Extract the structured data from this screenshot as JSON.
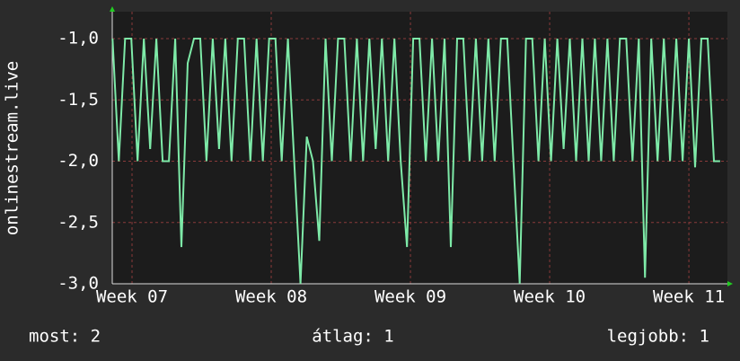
{
  "chart_data": {
    "type": "line",
    "ylabel": "onlinestream.live",
    "x": [
      6.86,
      6.905,
      6.95,
      6.995,
      7.04,
      7.085,
      7.13,
      7.175,
      7.22,
      7.265,
      7.31,
      7.355,
      7.4,
      7.445,
      7.49,
      7.535,
      7.58,
      7.625,
      7.67,
      7.715,
      7.76,
      7.805,
      7.85,
      7.895,
      7.94,
      7.985,
      8.03,
      8.075,
      8.12,
      8.165,
      8.21,
      8.255,
      8.3,
      8.345,
      8.39,
      8.435,
      8.48,
      8.525,
      8.57,
      8.615,
      8.66,
      8.705,
      8.75,
      8.795,
      8.84,
      8.885,
      8.93,
      8.975,
      9.02,
      9.065,
      9.11,
      9.155,
      9.2,
      9.245,
      9.29,
      9.335,
      9.38,
      9.425,
      9.47,
      9.515,
      9.56,
      9.605,
      9.65,
      9.695,
      9.74,
      9.785,
      9.83,
      9.875,
      9.92,
      9.965,
      10.01,
      10.055,
      10.1,
      10.145,
      10.19,
      10.235,
      10.28,
      10.325,
      10.37,
      10.415,
      10.46,
      10.505,
      10.55,
      10.595,
      10.64,
      10.685,
      10.73,
      10.775,
      10.82,
      10.865,
      10.91,
      10.955,
      11.0,
      11.045,
      11.09,
      11.135,
      11.18,
      11.225
    ],
    "series": [
      {
        "name": "onlinestream.live",
        "color": "#7eeaa8",
        "values": [
          -1,
          -2,
          -1,
          -1,
          -2,
          -1,
          -1.9,
          -1,
          -2,
          -2,
          -1,
          -2.7,
          -1.2,
          -1,
          -1,
          -2,
          -1,
          -1.9,
          -1,
          -2,
          -1,
          -1,
          -2,
          -1,
          -2,
          -1,
          -1,
          -2,
          -1,
          -2,
          -3,
          -1.8,
          -2,
          -2.65,
          -1,
          -2,
          -1,
          -1,
          -2,
          -1,
          -2,
          -1,
          -1.9,
          -1,
          -2,
          -1,
          -2,
          -2.7,
          -1,
          -1,
          -2,
          -1,
          -2,
          -1,
          -2.7,
          -1,
          -1,
          -2,
          -1,
          -2,
          -1,
          -2,
          -1,
          -1,
          -2,
          -3,
          -1,
          -1,
          -2,
          -1,
          -2,
          -1,
          -1.9,
          -1,
          -2,
          -1,
          -2,
          -1,
          -2,
          -1,
          -2,
          -1,
          -1,
          -2,
          -1,
          -2.95,
          -1,
          -2,
          -1,
          -2,
          -1,
          -2,
          -1,
          -2.05,
          -1,
          -1,
          -2,
          -2
        ]
      }
    ],
    "xlim": [
      6.858,
      11.277
    ],
    "xticks": [
      {
        "value": 7,
        "label": "Week 07"
      },
      {
        "value": 8,
        "label": "Week 08"
      },
      {
        "value": 9,
        "label": "Week 09"
      },
      {
        "value": 10,
        "label": "Week 10"
      },
      {
        "value": 11,
        "label": "Week 11"
      }
    ],
    "ylim": [
      -3,
      -0.78
    ],
    "yticks": [
      {
        "value": -3,
        "label": "-3,0"
      },
      {
        "value": -2.5,
        "label": "-2,5"
      },
      {
        "value": -2,
        "label": "-2,0"
      },
      {
        "value": -1.5,
        "label": "-1,5"
      },
      {
        "value": -1,
        "label": "-1,0"
      }
    ],
    "grid": true,
    "stats": [
      "most: 2",
      "átlag: 1",
      "legjobb: 1"
    ]
  }
}
